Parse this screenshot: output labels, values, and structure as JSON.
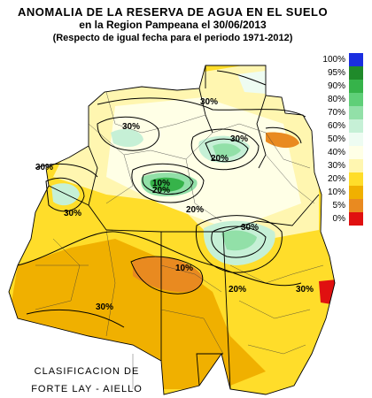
{
  "title": {
    "line1": "ANOMALIA DE LA RESERVA DE AGUA EN EL SUELO",
    "line2": "en la Region Pampeana el  30/06/2013",
    "line3": "(Respecto de igual fecha para el periodo 1971-2012)"
  },
  "legend": {
    "items": [
      {
        "label": "100%",
        "color": "#1a2ee0"
      },
      {
        "label": "95%",
        "color": "#1f8a2a"
      },
      {
        "label": "90%",
        "color": "#36b34a"
      },
      {
        "label": "80%",
        "color": "#5fcf78"
      },
      {
        "label": "70%",
        "color": "#92e0a8"
      },
      {
        "label": "60%",
        "color": "#c6f0d6"
      },
      {
        "label": "50%",
        "color": "#eefcf2"
      },
      {
        "label": "40%",
        "color": "#ffffe6"
      },
      {
        "label": "30%",
        "color": "#fff6b0"
      },
      {
        "label": "20%",
        "color": "#ffdd2a"
      },
      {
        "label": "10%",
        "color": "#f0b000"
      },
      {
        "label": "5%",
        "color": "#e98a20"
      },
      {
        "label": "0%",
        "color": "#e01010"
      }
    ]
  },
  "map_labels": {
    "l1": "30%",
    "l2": "30%",
    "l3": "30%",
    "l4": "30%",
    "l5": "20%",
    "l6": "20%",
    "l7": "10%",
    "l8": "30%",
    "l9": "30%",
    "l10": "20%",
    "l11": "20%",
    "l12": "10%",
    "l13": "30%",
    "l14": "30%"
  },
  "credit": {
    "line1": "CLASIFICACION DE",
    "line2": "FORTE LAY - AIELLO"
  }
}
